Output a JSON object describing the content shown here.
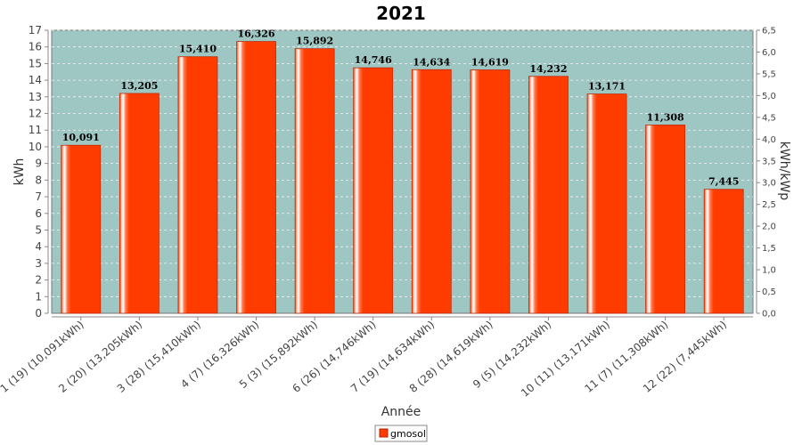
{
  "chart_data": {
    "type": "bar",
    "title": "2021",
    "xlabel": "Année",
    "ylabel": "kWh",
    "ylabel_right": "kWh/kWp",
    "ylim": [
      0,
      17
    ],
    "ylim_right": [
      0,
      6.5
    ],
    "y_ticks": [
      "0",
      "1",
      "2",
      "3",
      "4",
      "5",
      "6",
      "7",
      "8",
      "9",
      "10",
      "11",
      "12",
      "13",
      "14",
      "15",
      "16",
      "17"
    ],
    "y_ticks_right": [
      "0,0",
      "0,5",
      "1,0",
      "1,5",
      "2,0",
      "2,5",
      "3,0",
      "3,5",
      "4,0",
      "4,5",
      "5,0",
      "5,5",
      "6,0",
      "6,5"
    ],
    "categories": [
      "1 (19)  (10,091kWh)",
      "2 (20)  (13,205kWh)",
      "3 (28)  (15,410kWh)",
      "4 (7)  (16,326kWh)",
      "5 (3)  (15,892kWh)",
      "6 (26)  (14,746kWh)",
      "7 (19)  (14,634kWh)",
      "8 (28)  (14,619kWh)",
      "9 (5)  (14,232kWh)",
      "10 (11)  (13,171kWh)",
      "11 (7)  (11,308kWh)",
      "12 (22)  (7,445kWh)"
    ],
    "values": [
      10.091,
      13.205,
      15.41,
      16.326,
      15.892,
      14.746,
      14.634,
      14.619,
      14.232,
      13.171,
      11.308,
      7.445
    ],
    "value_labels": [
      "10,091",
      "13,205",
      "15,410",
      "16,326",
      "15,892",
      "14,746",
      "14,634",
      "14,619",
      "14,232",
      "13,171",
      "11,308",
      "7,445"
    ],
    "series": [
      {
        "name": "gmosol",
        "color": "#ff3c00"
      }
    ],
    "plot_background": "#9ec6c3",
    "grid": true,
    "legend_position": "bottom-center"
  }
}
